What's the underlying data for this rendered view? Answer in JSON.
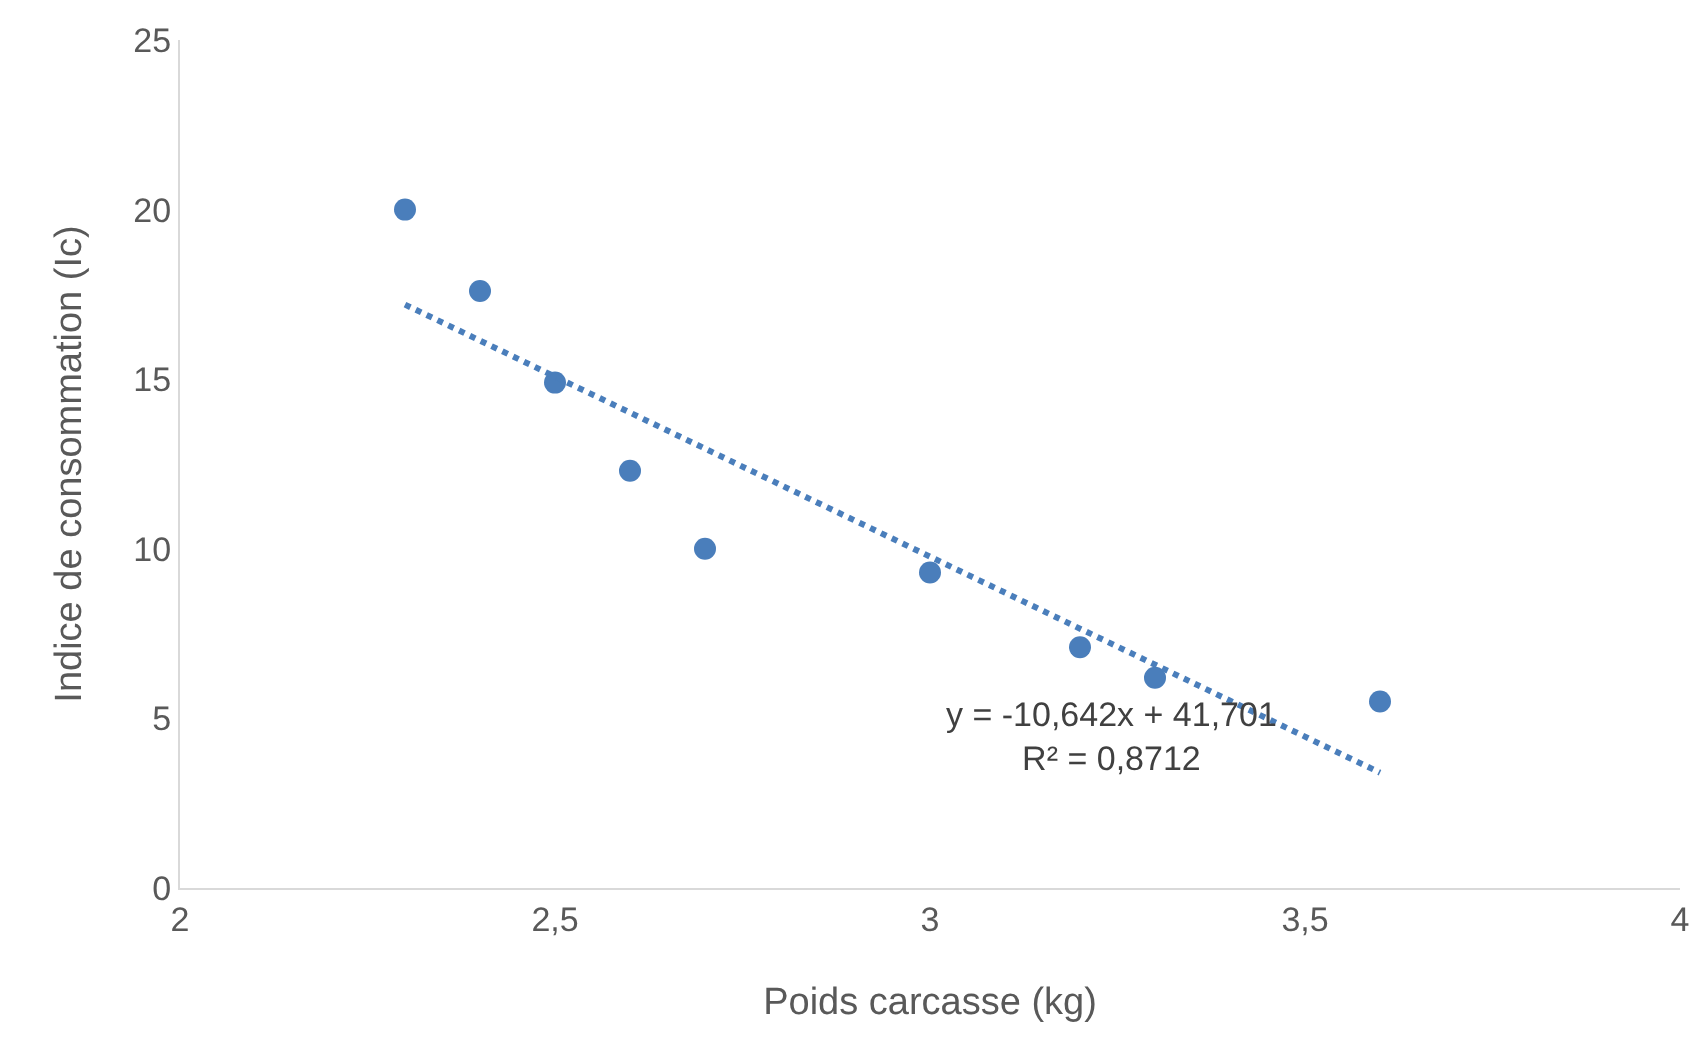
{
  "chart_data": {
    "type": "scatter",
    "xlabel": "Poids carcasse (kg)",
    "ylabel": "Indice de consommation (Ic)",
    "xlim": [
      2,
      4
    ],
    "xticks": [
      2,
      {
        "value": 2.5,
        "label": "2,5"
      },
      3,
      {
        "value": 3.5,
        "label": "3,5"
      },
      4
    ],
    "ylim": [
      0,
      25
    ],
    "yticks": [
      0,
      5,
      10,
      15,
      20,
      25
    ],
    "grid": false,
    "marker": "circle",
    "series": [
      {
        "color": "#4a7ebb",
        "x": [
          2.3,
          2.4,
          2.5,
          2.6,
          2.7,
          3.0,
          3.2,
          3.3,
          3.6
        ],
        "values": [
          20,
          17.6,
          14.9,
          12.3,
          10.0,
          9.3,
          7.1,
          6.2,
          5.5
        ]
      },
      {
        "type": "line",
        "color": "#4a7ebb",
        "line_style": "dotted",
        "marker": "none",
        "x": [
          2.3,
          3.6
        ],
        "values": [
          17.2,
          3.4
        ]
      }
    ],
    "annotations": [
      "y = -10,642x + 41,701\nR² = 0,8712"
    ]
  }
}
